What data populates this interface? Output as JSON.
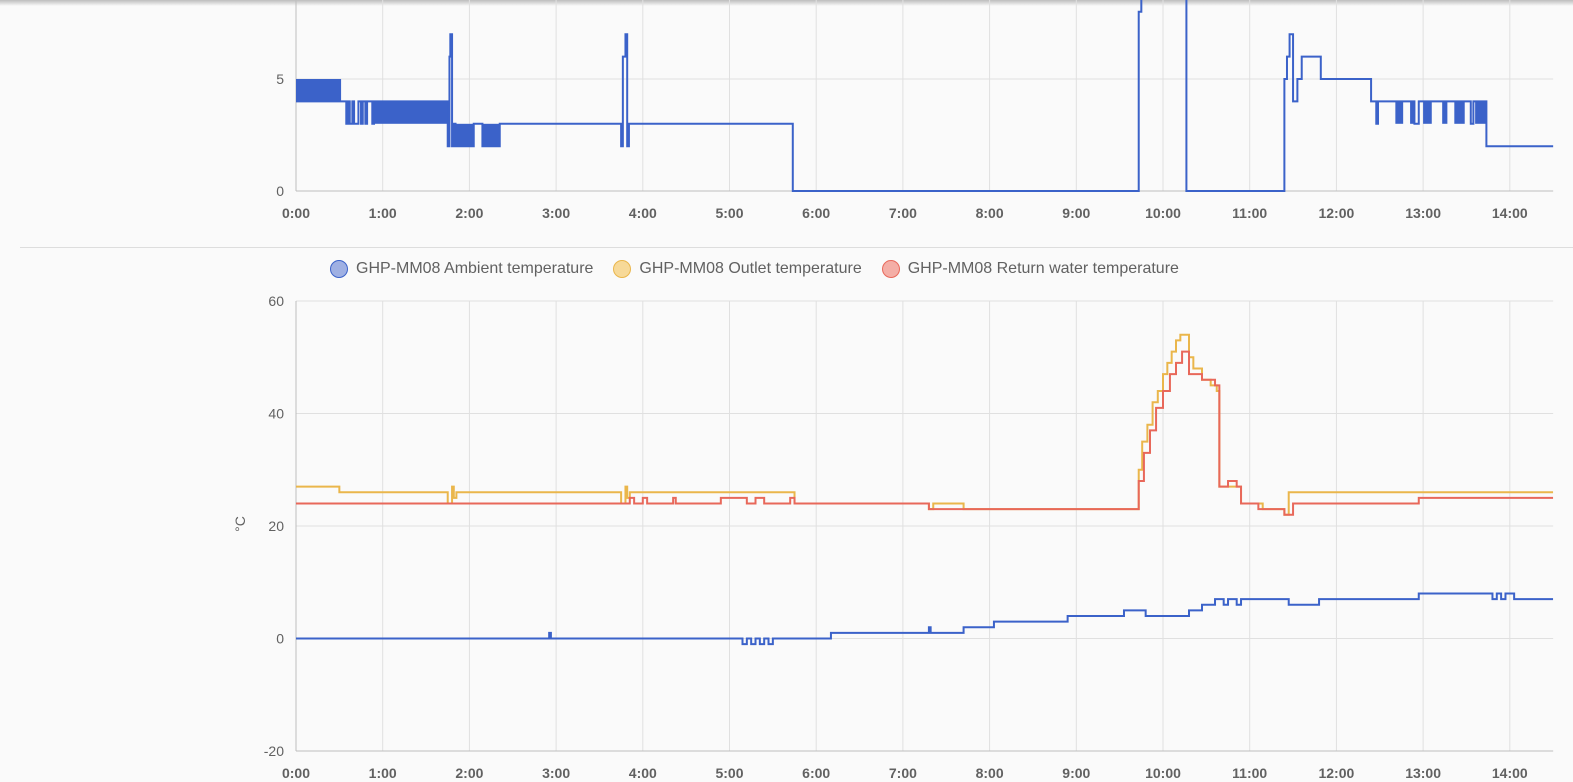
{
  "chart_data": [
    {
      "type": "line",
      "title": "",
      "xlabel": "",
      "ylabel": "",
      "xlim": [
        0,
        14.5
      ],
      "ylim": [
        0,
        8.5
      ],
      "yticks": [
        0,
        5
      ],
      "xtick_labels": [
        "0:00",
        "1:00",
        "2:00",
        "3:00",
        "4:00",
        "5:00",
        "6:00",
        "7:00",
        "8:00",
        "9:00",
        "10:00",
        "11:00",
        "12:00",
        "13:00",
        "14:00"
      ],
      "grid": true,
      "series": [
        {
          "name": "",
          "color": "#3b62c9",
          "steps": [
            [
              0,
              4
            ],
            [
              0.52,
              4
            ],
            [
              0.58,
              3
            ],
            [
              0.6,
              4
            ],
            [
              0.62,
              3
            ],
            [
              0.65,
              4
            ],
            [
              0.67,
              3
            ],
            [
              0.72,
              4
            ],
            [
              0.75,
              3
            ],
            [
              0.77,
              4
            ],
            [
              0.8,
              3
            ],
            [
              0.82,
              4
            ],
            [
              0.88,
              3
            ],
            [
              0.9,
              4
            ],
            [
              1.75,
              2
            ],
            [
              1.77,
              6
            ],
            [
              1.78,
              7
            ],
            [
              1.8,
              2
            ],
            [
              1.82,
              3
            ],
            [
              1.84,
              2
            ],
            [
              2.05,
              3
            ],
            [
              2.15,
              2
            ],
            [
              2.35,
              3
            ],
            [
              3.75,
              2
            ],
            [
              3.77,
              6
            ],
            [
              3.8,
              7
            ],
            [
              3.82,
              2
            ],
            [
              3.84,
              3
            ],
            [
              5.73,
              0
            ],
            [
              9.72,
              8
            ],
            [
              9.75,
              10
            ],
            [
              10.27,
              0
            ],
            [
              11.4,
              5
            ],
            [
              11.43,
              6
            ],
            [
              11.46,
              7
            ],
            [
              11.5,
              4
            ],
            [
              11.55,
              5
            ],
            [
              11.6,
              6
            ],
            [
              11.82,
              5
            ],
            [
              12.4,
              4
            ],
            [
              12.46,
              3
            ],
            [
              12.48,
              4
            ],
            [
              12.9,
              3
            ],
            [
              12.95,
              4
            ],
            [
              13.55,
              3
            ],
            [
              13.58,
              4
            ],
            [
              13.73,
              2
            ],
            [
              14.52,
              6
            ],
            [
              14.54,
              2
            ],
            [
              14.5,
              2
            ]
          ],
          "bands": [
            {
              "from": 0,
              "to": 0.52,
              "values": [
                4,
                5
              ]
            },
            {
              "from": 0.9,
              "to": 1.75,
              "values": [
                3,
                4
              ]
            },
            {
              "from": 1.84,
              "to": 2.05,
              "values": [
                2,
                3
              ]
            },
            {
              "from": 2.15,
              "to": 2.35,
              "values": [
                2,
                3
              ]
            },
            {
              "from": 12.68,
              "to": 12.77,
              "values": [
                3,
                4
              ]
            },
            {
              "from": 12.85,
              "to": 12.9,
              "values": [
                3,
                4
              ]
            },
            {
              "from": 13.0,
              "to": 13.1,
              "values": [
                3,
                4
              ]
            },
            {
              "from": 13.22,
              "to": 13.28,
              "values": [
                3,
                4
              ]
            },
            {
              "from": 13.36,
              "to": 13.48,
              "values": [
                3,
                4
              ]
            },
            {
              "from": 13.6,
              "to": 13.72,
              "values": [
                3,
                4
              ]
            }
          ]
        }
      ]
    },
    {
      "type": "line",
      "title": "",
      "xlabel": "",
      "ylabel": "°C",
      "xlim": [
        0,
        14.5
      ],
      "ylim": [
        -20,
        60
      ],
      "yticks": [
        -20,
        0,
        20,
        40,
        60
      ],
      "xtick_labels": [
        "0:00",
        "1:00",
        "2:00",
        "3:00",
        "4:00",
        "5:00",
        "6:00",
        "7:00",
        "8:00",
        "9:00",
        "10:00",
        "11:00",
        "12:00",
        "13:00",
        "14:00"
      ],
      "grid": true,
      "legend": "top",
      "series": [
        {
          "name": "GHP-MM08 Ambient temperature",
          "color": "#3b62c9",
          "fill": "#9fb0e3",
          "steps": [
            [
              0,
              0
            ],
            [
              2.92,
              1
            ],
            [
              2.94,
              0
            ],
            [
              5.15,
              -1
            ],
            [
              5.2,
              0
            ],
            [
              5.25,
              -1
            ],
            [
              5.3,
              0
            ],
            [
              5.35,
              -1
            ],
            [
              5.4,
              0
            ],
            [
              5.45,
              -1
            ],
            [
              5.5,
              0
            ],
            [
              6.17,
              1
            ],
            [
              7.3,
              2
            ],
            [
              7.32,
              1
            ],
            [
              7.7,
              2
            ],
            [
              8.05,
              3
            ],
            [
              8.9,
              4
            ],
            [
              9.55,
              5
            ],
            [
              9.8,
              4
            ],
            [
              10.3,
              5
            ],
            [
              10.45,
              6
            ],
            [
              10.6,
              7
            ],
            [
              10.7,
              6
            ],
            [
              10.75,
              7
            ],
            [
              10.85,
              6
            ],
            [
              10.9,
              7
            ],
            [
              11.45,
              6
            ],
            [
              11.8,
              7
            ],
            [
              12.95,
              8
            ],
            [
              13.8,
              7
            ],
            [
              13.85,
              8
            ],
            [
              13.9,
              7
            ],
            [
              13.95,
              8
            ],
            [
              14.05,
              7
            ],
            [
              14.5,
              7
            ]
          ]
        },
        {
          "name": "GHP-MM08 Outlet temperature",
          "color": "#eab64b",
          "fill": "#f7d998",
          "steps": [
            [
              0,
              27
            ],
            [
              0.5,
              26
            ],
            [
              1.75,
              24
            ],
            [
              1.8,
              27
            ],
            [
              1.82,
              25
            ],
            [
              1.85,
              26
            ],
            [
              3.75,
              24
            ],
            [
              3.8,
              27
            ],
            [
              3.82,
              25
            ],
            [
              3.85,
              26
            ],
            [
              5.75,
              24
            ],
            [
              7.3,
              23
            ],
            [
              7.35,
              24
            ],
            [
              7.7,
              23
            ],
            [
              9.72,
              30
            ],
            [
              9.76,
              35
            ],
            [
              9.82,
              38
            ],
            [
              9.88,
              42
            ],
            [
              9.94,
              44
            ],
            [
              10.0,
              47
            ],
            [
              10.05,
              49
            ],
            [
              10.1,
              51
            ],
            [
              10.15,
              53
            ],
            [
              10.2,
              54
            ],
            [
              10.3,
              50
            ],
            [
              10.35,
              48
            ],
            [
              10.45,
              46
            ],
            [
              10.55,
              45
            ],
            [
              10.62,
              44
            ],
            [
              10.65,
              27
            ],
            [
              10.8,
              27
            ],
            [
              10.9,
              24
            ],
            [
              11.15,
              23
            ],
            [
              11.4,
              22
            ],
            [
              11.45,
              26
            ],
            [
              14.5,
              26
            ]
          ]
        },
        {
          "name": "GHP-MM08 Return water temperature",
          "color": "#e8685a",
          "fill": "#f4aea6",
          "steps": [
            [
              0,
              24
            ],
            [
              3.85,
              25
            ],
            [
              3.9,
              24
            ],
            [
              4.0,
              25
            ],
            [
              4.05,
              24
            ],
            [
              4.35,
              25
            ],
            [
              4.38,
              24
            ],
            [
              4.9,
              25
            ],
            [
              5.2,
              24
            ],
            [
              5.3,
              25
            ],
            [
              5.4,
              24
            ],
            [
              5.7,
              25
            ],
            [
              5.75,
              24
            ],
            [
              7.3,
              23
            ],
            [
              9.72,
              28
            ],
            [
              9.78,
              33
            ],
            [
              9.85,
              37
            ],
            [
              9.92,
              41
            ],
            [
              10.0,
              44
            ],
            [
              10.08,
              47
            ],
            [
              10.15,
              49
            ],
            [
              10.22,
              51
            ],
            [
              10.3,
              47
            ],
            [
              10.45,
              46
            ],
            [
              10.6,
              45
            ],
            [
              10.65,
              27
            ],
            [
              10.75,
              28
            ],
            [
              10.85,
              27
            ],
            [
              10.9,
              24
            ],
            [
              11.1,
              23
            ],
            [
              11.4,
              22
            ],
            [
              11.5,
              24
            ],
            [
              12.95,
              25
            ],
            [
              14.5,
              25
            ]
          ]
        }
      ]
    }
  ]
}
